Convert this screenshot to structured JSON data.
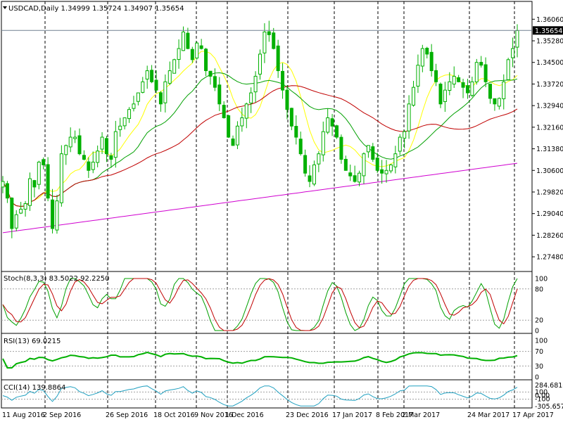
{
  "chart_data": {
    "type": "candlestick",
    "symbol_line": "USDCAD,Daily  1.34999 1.35724 1.34907 1.35654",
    "current_price": 1.35654,
    "current_price_label": "1.35654",
    "price_axis": {
      "ylim": [
        1.27,
        1.365
      ],
      "ticks": [
        "1.36060",
        "1.35280",
        "1.34500",
        "1.33720",
        "1.32940",
        "1.32160",
        "1.31380",
        "1.30600",
        "1.29820",
        "1.29040",
        "1.28260",
        "1.27480"
      ],
      "tick_values": [
        1.3606,
        1.3528,
        1.345,
        1.3372,
        1.3294,
        1.3216,
        1.3138,
        1.306,
        1.2982,
        1.2904,
        1.2826,
        1.2748
      ]
    },
    "x_labels": [
      "11 Aug 2016",
      "2 Sep 2016",
      "26 Sep 2016",
      "18 Oct 2016",
      "9 Nov 2016",
      "1 Dec 2016",
      "23 Dec 2016",
      "17 Jan 2017",
      "8 Feb 2017",
      "2 Mar 2017",
      "24 Mar 2017",
      "17 Apr 2017"
    ],
    "close_series": [
      1.302,
      1.296,
      1.285,
      1.29,
      1.292,
      1.294,
      1.303,
      1.3,
      1.309,
      1.308,
      1.296,
      1.285,
      1.295,
      1.312,
      1.315,
      1.318,
      1.318,
      1.312,
      1.31,
      1.306,
      1.309,
      1.313,
      1.318,
      1.312,
      1.31,
      1.32,
      1.322,
      1.325,
      1.328,
      1.33,
      1.334,
      1.338,
      1.342,
      1.338,
      1.335,
      1.33,
      1.338,
      1.342,
      1.346,
      1.35,
      1.356,
      1.35,
      1.346,
      1.352,
      1.35,
      1.342,
      1.34,
      1.336,
      1.33,
      1.325,
      1.318,
      1.315,
      1.322,
      1.325,
      1.33,
      1.334,
      1.34,
      1.348,
      1.356,
      1.355,
      1.35,
      1.342,
      1.335,
      1.328,
      1.322,
      1.318,
      1.312,
      1.305,
      1.302,
      1.308,
      1.312,
      1.32,
      1.325,
      1.322,
      1.318,
      1.31,
      1.306,
      1.304,
      1.302,
      1.305,
      1.312,
      1.315,
      1.31,
      1.306,
      1.305,
      1.306,
      1.308,
      1.312,
      1.318,
      1.32,
      1.33,
      1.336,
      1.344,
      1.35,
      1.348,
      1.342,
      1.338,
      1.33,
      1.335,
      1.338,
      1.34,
      1.338,
      1.336,
      1.334,
      1.338,
      1.345,
      1.344,
      1.338,
      1.332,
      1.33,
      1.332,
      1.338,
      1.346,
      1.35,
      1.3565
    ],
    "indicators": [
      {
        "name": "Simple Moving Average (yellow)",
        "color": "#ffff00"
      },
      {
        "name": "Moving Average (green)",
        "color": "#00a000"
      },
      {
        "name": "Moving Average (red)",
        "color": "#c00000"
      },
      {
        "name": "Moving Average (magenta)",
        "color": "#d000d0"
      }
    ],
    "stochastic": {
      "label": "Stoch(8,3,3) 83.5022 92.2250",
      "levels": [
        "100",
        "80",
        "20",
        "0"
      ],
      "ylim": [
        0,
        100
      ],
      "main_color": "#00a000",
      "signal_color": "#c00000"
    },
    "rsi": {
      "label": "RSI(13) 69.0215",
      "levels": [
        "100",
        "70",
        "30",
        "0"
      ],
      "ylim": [
        0,
        100
      ],
      "color": "#00b000"
    },
    "cci": {
      "label": "CCI(14) 139.8864",
      "levels": [
        "284.6816",
        "100",
        "0.00",
        "-100",
        "-305.6572"
      ],
      "color": "#20a0c0"
    }
  }
}
